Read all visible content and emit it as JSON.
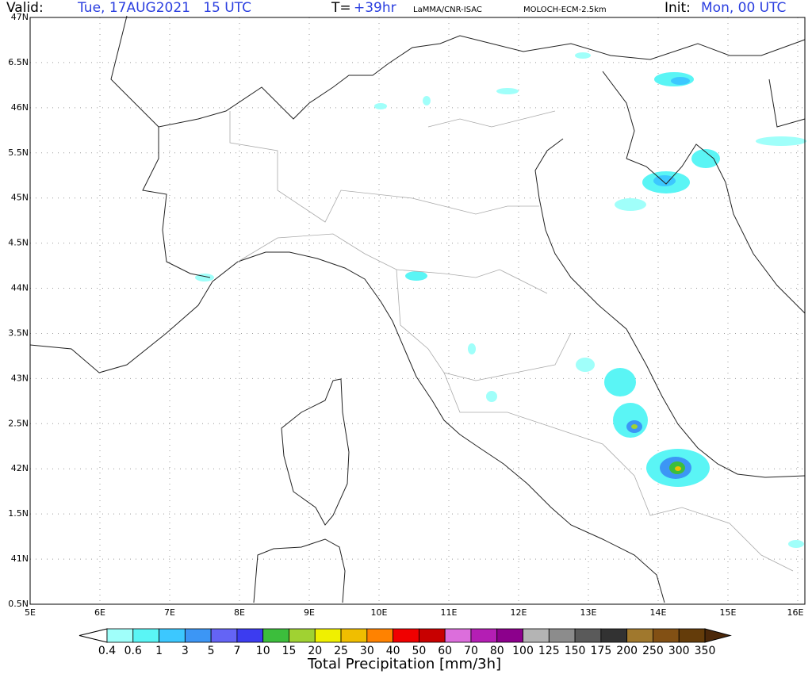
{
  "header": {
    "valid_label": "Valid:",
    "valid_time": "Tue, 17AUG2021   15 UTC",
    "lead_label": "T=",
    "lead": "+39hr",
    "source": "LaMMA/CNR-ISAC",
    "model": "MOLOCH-ECM-2.5km",
    "init_label": "Init:",
    "init_time": "Mon, 00 UTC"
  },
  "map": {
    "lon_labels": [
      "5E",
      "6E",
      "7E",
      "8E",
      "9E",
      "10E",
      "11E",
      "12E",
      "13E",
      "14E",
      "15E",
      "16E"
    ],
    "lat_labels": [
      "47N",
      "6.5N",
      "46N",
      "5.5N",
      "45N",
      "4.5N",
      "44N",
      "3.5N",
      "43N",
      "2.5N",
      "42N",
      "1.5N",
      "41N",
      "0.5N"
    ]
  },
  "colorbar": {
    "labels": [
      "0.4",
      "0.6",
      "1",
      "3",
      "5",
      "7",
      "10",
      "15",
      "20",
      "25",
      "30",
      "40",
      "50",
      "60",
      "70",
      "80",
      "100",
      "125",
      "150",
      "175",
      "200",
      "250",
      "300",
      "350"
    ],
    "colors": [
      "#ffffff",
      "#a0fffa",
      "#5af5f5",
      "#3cc8ff",
      "#3c96f5",
      "#6464f5",
      "#3c3cf0",
      "#3cbe3c",
      "#a0d232",
      "#f0f000",
      "#f0be00",
      "#ff8200",
      "#f00000",
      "#c80000",
      "#dc6edc",
      "#b41eb4",
      "#8c008c",
      "#b4b4b4",
      "#8c8c8c",
      "#5a5a5a",
      "#323232",
      "#a0782d",
      "#825014",
      "#643c0a",
      "#4b280a"
    ],
    "title": "Total Precipitation [mm/3h]"
  }
}
